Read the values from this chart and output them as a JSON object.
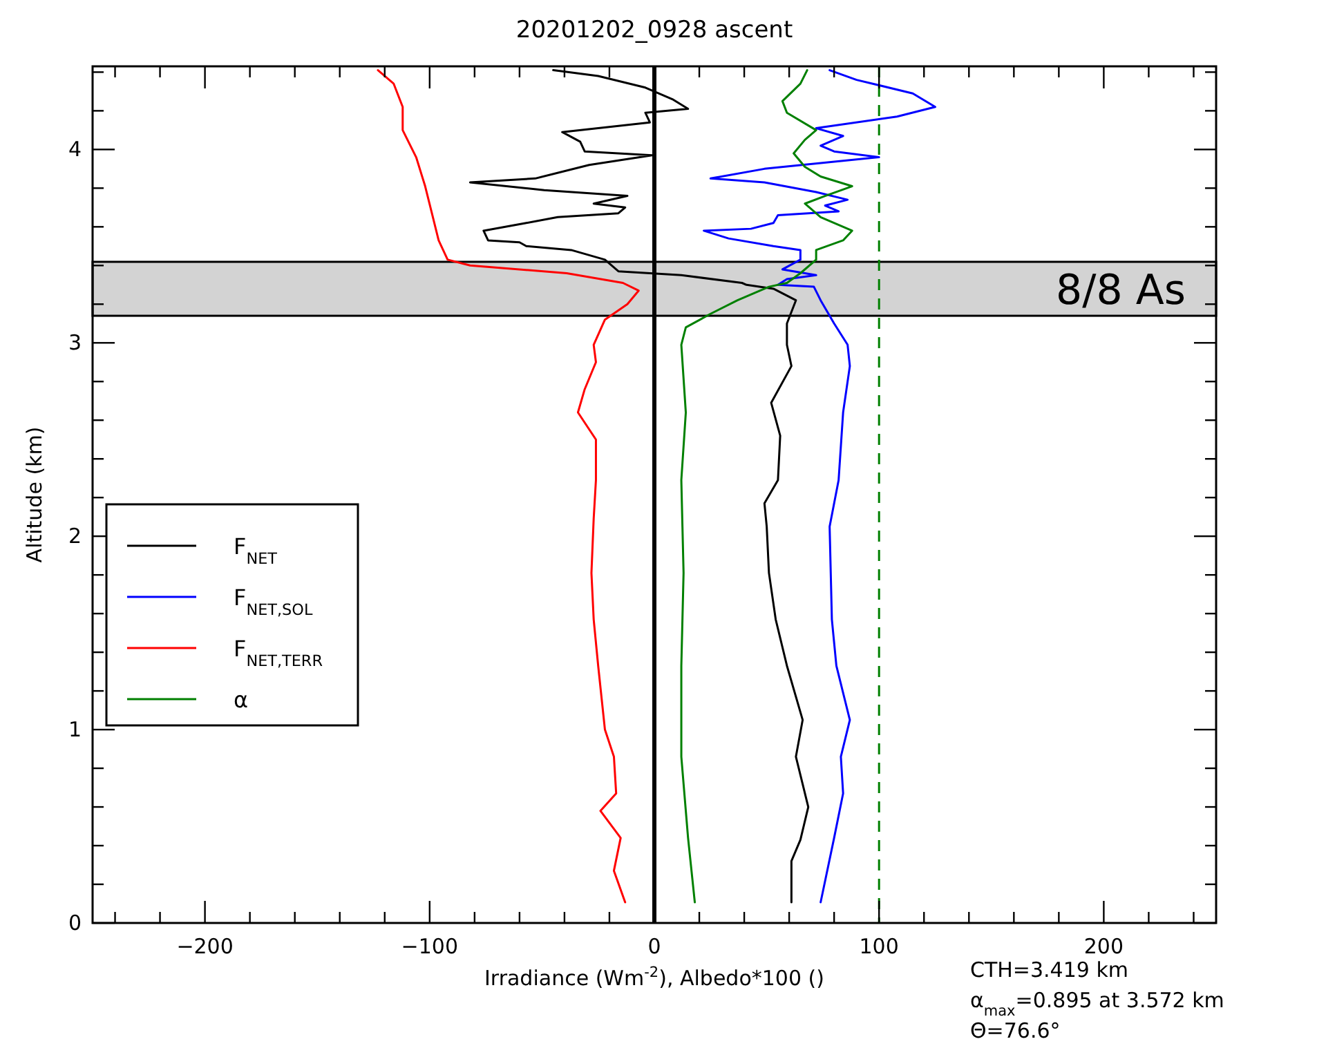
{
  "chart_data": {
    "type": "line",
    "title": "20201202_0928 ascent",
    "xlabel": "Irradiance (Wm$^{-2}$), Albedo*100 ()",
    "ylabel": "Altitude (km)",
    "xlim": [
      -250,
      250
    ],
    "ylim": [
      0,
      4.43
    ],
    "xticks": [
      {
        "value": -240,
        "label": null
      },
      {
        "value": -220,
        "label": null
      },
      -200,
      {
        "value": -180,
        "label": null
      },
      {
        "value": -160,
        "label": null
      },
      {
        "value": -140,
        "label": null
      },
      {
        "value": -120,
        "label": null
      },
      -100,
      {
        "value": -80,
        "label": null
      },
      {
        "value": -60,
        "label": null
      },
      {
        "value": -40,
        "label": null
      },
      {
        "value": -20,
        "label": null
      },
      0,
      {
        "value": 20,
        "label": null
      },
      {
        "value": 40,
        "label": null
      },
      {
        "value": 60,
        "label": null
      },
      {
        "value": 80,
        "label": null
      },
      100,
      {
        "value": 120,
        "label": null
      },
      {
        "value": 140,
        "label": null
      },
      {
        "value": 160,
        "label": null
      },
      {
        "value": 180,
        "label": null
      },
      200,
      {
        "value": 220,
        "label": null
      },
      {
        "value": 240,
        "label": null
      }
    ],
    "yticks": [
      0,
      {
        "value": 0.2,
        "label": null
      },
      {
        "value": 0.4,
        "label": null
      },
      {
        "value": 0.6,
        "label": null
      },
      {
        "value": 0.8,
        "label": null
      },
      1,
      {
        "value": 1.2,
        "label": null
      },
      {
        "value": 1.4,
        "label": null
      },
      {
        "value": 1.6,
        "label": null
      },
      {
        "value": 1.8,
        "label": null
      },
      2,
      {
        "value": 2.2,
        "label": null
      },
      {
        "value": 2.4,
        "label": null
      },
      {
        "value": 2.6,
        "label": null
      },
      {
        "value": 2.8,
        "label": null
      },
      3,
      {
        "value": 3.2,
        "label": null
      },
      {
        "value": 3.4,
        "label": null
      },
      {
        "value": 3.6,
        "label": null
      },
      {
        "value": 3.8,
        "label": null
      },
      4,
      {
        "value": 4.2,
        "label": null
      },
      {
        "value": 4.4,
        "label": null
      }
    ],
    "grid": false,
    "legend": "left",
    "marker": "none",
    "line_style": "solid",
    "series": [
      {
        "name": "F$_{NET}$",
        "color": "#000000",
        "x": [
          61,
          61,
          65,
          68.5,
          63,
          66,
          59,
          54,
          51,
          50,
          49,
          55,
          56,
          52,
          61,
          59,
          59,
          63,
          53,
          41,
          39,
          12,
          -16,
          -22,
          -37,
          -57,
          -60,
          -74,
          -76,
          -57,
          -43,
          -16,
          -13,
          -27,
          -12,
          -49,
          -82,
          -53,
          -29,
          -1,
          -31,
          -33,
          -41,
          -2,
          -4,
          15,
          8,
          -4,
          -25,
          -45
        ],
        "values": [
          0.107,
          0.32,
          0.43,
          0.6,
          0.86,
          1.05,
          1.33,
          1.57,
          1.81,
          2.05,
          2.17,
          2.29,
          2.52,
          2.69,
          2.88,
          2.99,
          3.1,
          3.22,
          3.28,
          3.3,
          3.31,
          3.35,
          3.37,
          3.43,
          3.48,
          3.5,
          3.52,
          3.53,
          3.58,
          3.62,
          3.65,
          3.67,
          3.7,
          3.72,
          3.76,
          3.79,
          3.83,
          3.85,
          3.92,
          3.97,
          3.99,
          4.04,
          4.09,
          4.14,
          4.19,
          4.21,
          4.26,
          4.32,
          4.38,
          4.41
        ]
      },
      {
        "name": "F$_{NET,SOL}$",
        "color": "#0000ff",
        "x": [
          74,
          80,
          84,
          83,
          87,
          81,
          79,
          78,
          82,
          84,
          87,
          86,
          80,
          74,
          71,
          55,
          59,
          72,
          57,
          65,
          65,
          53,
          33,
          22,
          43,
          53,
          55,
          82,
          76,
          86,
          72,
          49,
          25,
          49,
          100,
          80,
          74,
          84,
          72,
          108,
          125,
          115,
          90,
          78
        ],
        "values": [
          0.107,
          0.44,
          0.67,
          0.86,
          1.05,
          1.33,
          1.57,
          2.05,
          2.29,
          2.64,
          2.88,
          2.99,
          3.1,
          3.22,
          3.29,
          3.3,
          3.33,
          3.35,
          3.38,
          3.43,
          3.48,
          3.5,
          3.54,
          3.58,
          3.59,
          3.62,
          3.66,
          3.68,
          3.71,
          3.74,
          3.78,
          3.83,
          3.85,
          3.9,
          3.96,
          3.99,
          4.02,
          4.07,
          4.11,
          4.17,
          4.22,
          4.29,
          4.36,
          4.41
        ]
      },
      {
        "name": "F$_{NET,TERR}$",
        "color": "#ff0000",
        "x": [
          -13,
          -18,
          -15,
          -24,
          -17,
          -18,
          -22,
          -25,
          -27,
          -28,
          -27,
          -26,
          -26,
          -34,
          -31,
          -26,
          -27,
          -22,
          -12,
          -7,
          -14,
          -39,
          -82,
          -92,
          -96,
          -99,
          -102,
          -106,
          -112,
          -112,
          -116,
          -123
        ],
        "values": [
          0.107,
          0.27,
          0.44,
          0.58,
          0.67,
          0.86,
          1.0,
          1.33,
          1.57,
          1.81,
          2.09,
          2.29,
          2.5,
          2.64,
          2.76,
          2.9,
          2.99,
          3.12,
          3.2,
          3.27,
          3.31,
          3.36,
          3.4,
          3.43,
          3.53,
          3.67,
          3.81,
          3.96,
          4.1,
          4.22,
          4.34,
          4.41
        ]
      },
      {
        "name": "α",
        "color": "#008000",
        "x": [
          18,
          15,
          12,
          12,
          13,
          12,
          14,
          12,
          14,
          25,
          37,
          51,
          59,
          65,
          72,
          72,
          84,
          88,
          74,
          67,
          76,
          88,
          74,
          67,
          62,
          67,
          72,
          59,
          57,
          65,
          68
        ],
        "values": [
          0.107,
          0.44,
          0.86,
          1.33,
          1.81,
          2.29,
          2.64,
          2.99,
          3.08,
          3.15,
          3.22,
          3.29,
          3.31,
          3.36,
          3.43,
          3.48,
          3.53,
          3.58,
          3.65,
          3.72,
          3.76,
          3.81,
          3.86,
          3.91,
          3.98,
          4.05,
          4.1,
          4.19,
          4.25,
          4.34,
          4.41
        ]
      }
    ],
    "ref_lines": [
      {
        "axis": "x",
        "value": 0,
        "color": "#000000",
        "line_style": "solid"
      },
      {
        "axis": "x",
        "value": 100,
        "color": "#008000",
        "line_style": "dashed"
      }
    ],
    "bands": [
      {
        "axis": "y",
        "from": 3.14,
        "to": 3.419,
        "label": "8/8 As",
        "color": "#d3d3d3"
      }
    ],
    "annotations": [
      "CTH=3.419 km",
      "α$_{max}$=0.895 at 3.572 km",
      "Θ=76.6°"
    ]
  }
}
